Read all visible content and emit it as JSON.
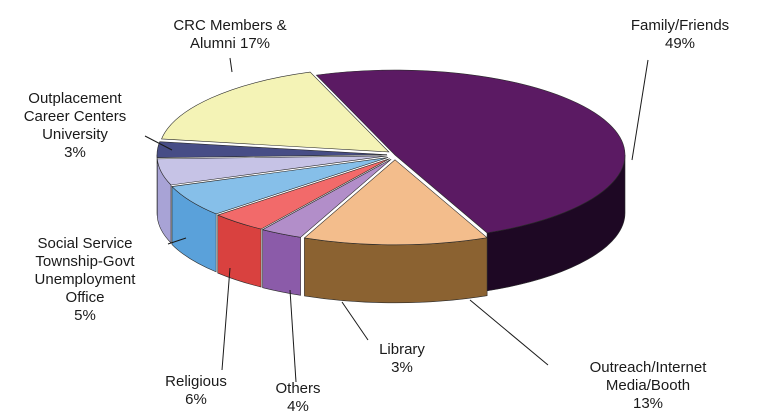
{
  "chart_data": {
    "type": "pie",
    "style": "3d-exploded",
    "title": "",
    "slices": [
      {
        "label": [
          "Family/Friends",
          "49%"
        ],
        "value": 49,
        "color": "#5b1a63",
        "side": "#1e0824"
      },
      {
        "label": [
          "Outreach/Internet",
          "Media/Booth",
          "13%"
        ],
        "value": 13,
        "color": "#f3bd8c",
        "side": "#8b6231"
      },
      {
        "label": [
          "Library",
          "3%"
        ],
        "value": 3,
        "color": "#b28ec9",
        "side": "#8b5ba9"
      },
      {
        "label": [
          "Others",
          "4%"
        ],
        "value": 4,
        "color": "#f26a6a",
        "side": "#d9413f"
      },
      {
        "label": [
          "Religious",
          "6%"
        ],
        "value": 6,
        "color": "#86bfe9",
        "side": "#5aa1da"
      },
      {
        "label": [
          "Social Service",
          "Township-Govt",
          "Unemployment",
          "Office",
          "5%"
        ],
        "value": 5,
        "color": "#c6c3e6",
        "side": "#a8a3d6"
      },
      {
        "label": [
          "Outplacement",
          "Career Centers",
          "University",
          "3%"
        ],
        "value": 3,
        "color": "#474d86",
        "side": "#2e3366"
      },
      {
        "label": [
          "CRC Members &",
          "Alumni 17%"
        ],
        "value": 17,
        "color": "#f4f3b6",
        "side": "#c9c78a"
      }
    ]
  }
}
